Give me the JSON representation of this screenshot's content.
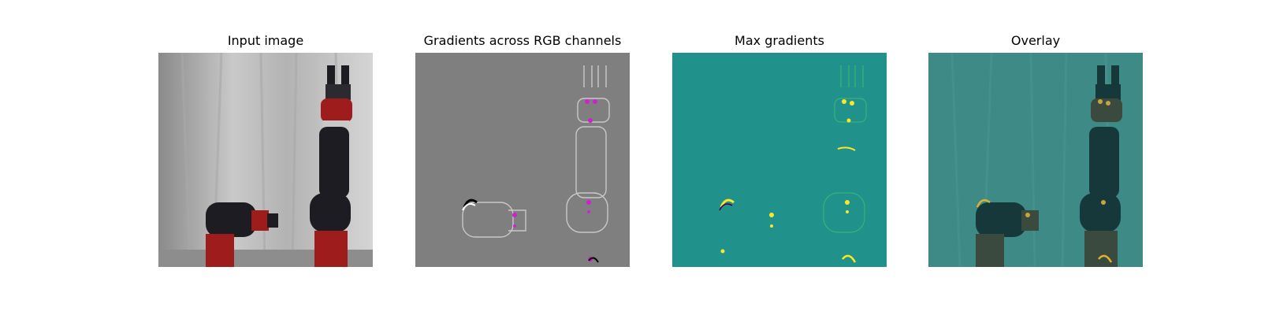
{
  "figure": {
    "panels": [
      {
        "id": "input",
        "title": "Input image"
      },
      {
        "id": "gradients-rgb",
        "title": "Gradients across RGB channels"
      },
      {
        "id": "max-gradients",
        "title": "Max gradients"
      },
      {
        "id": "overlay",
        "title": "Overlay"
      }
    ]
  },
  "colors": {
    "background": "#ffffff",
    "gradient_gray": "#7f7f7f",
    "viridis_teal": "#21918c",
    "overlay_teal": "#3d8a86",
    "robot_red": "#9e1c1c",
    "robot_black": "#1c1c22",
    "highlight_magenta": "#d21fd2",
    "highlight_yellow": "#fde725"
  }
}
